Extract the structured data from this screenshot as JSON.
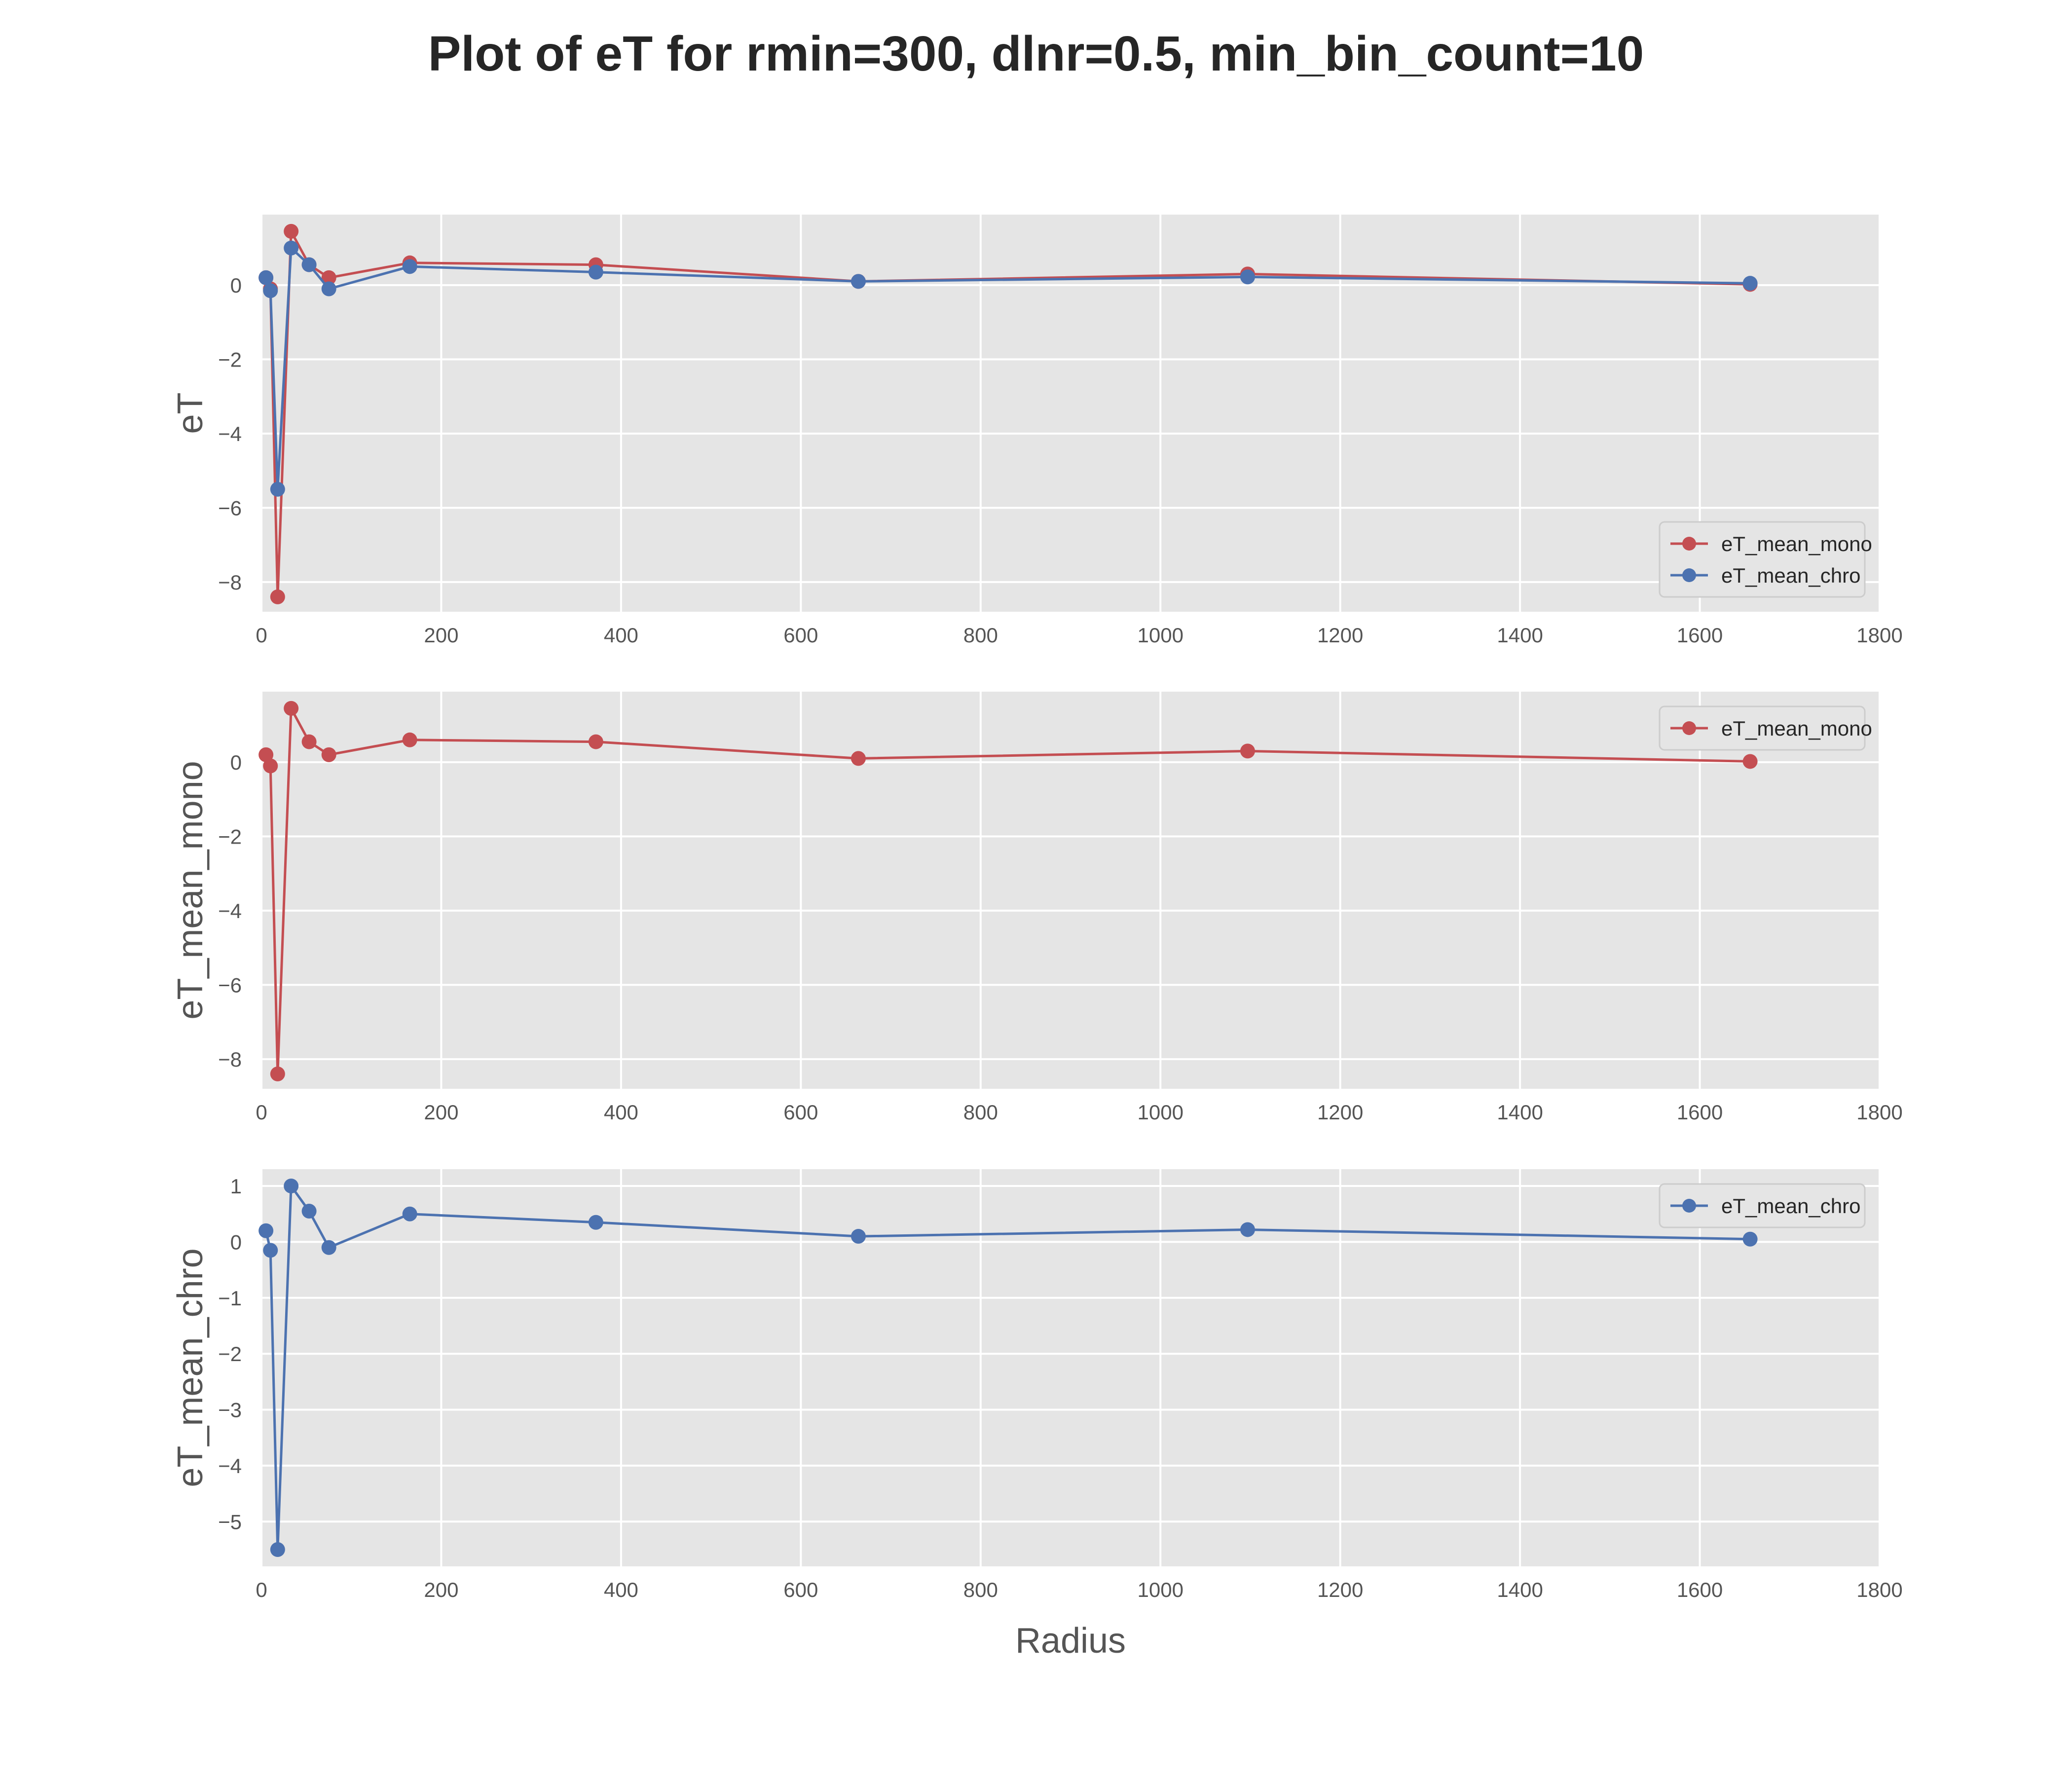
{
  "title": "Plot of eT for rmin=300, dlnr=0.5, min_bin_count=10",
  "colors": {
    "mono": "#c44e52",
    "chro": "#4c72b0",
    "panel_bg": "#e5e5e5",
    "grid": "#ffffff"
  },
  "chart_data": [
    {
      "type": "line",
      "ylabel": "eT",
      "xlabel": "",
      "xlim": [
        0,
        1800
      ],
      "ylim": [
        -8.8,
        1.9
      ],
      "xticks": [
        0,
        200,
        400,
        600,
        800,
        1000,
        1200,
        1400,
        1600,
        1800
      ],
      "yticks": [
        0,
        -2,
        -4,
        -6,
        -8
      ],
      "ytick_labels": [
        "0",
        "−2",
        "−4",
        "−6",
        "−8"
      ],
      "grid": true,
      "legend_position": "lower-right",
      "series": [
        {
          "name": "eT_mean_mono",
          "color_key": "mono",
          "x": [
            5,
            10,
            18,
            33,
            53,
            75,
            165,
            372,
            664,
            1097,
            1656
          ],
          "y": [
            0.2,
            -0.1,
            -8.4,
            1.45,
            0.55,
            0.2,
            0.6,
            0.55,
            0.1,
            0.3,
            0.02
          ]
        },
        {
          "name": "eT_mean_chro",
          "color_key": "chro",
          "x": [
            5,
            10,
            18,
            33,
            53,
            75,
            165,
            372,
            664,
            1097,
            1656
          ],
          "y": [
            0.2,
            -0.15,
            -5.5,
            1.0,
            0.55,
            -0.1,
            0.5,
            0.35,
            0.1,
            0.22,
            0.05
          ]
        }
      ]
    },
    {
      "type": "line",
      "ylabel": "eT_mean_mono",
      "xlabel": "",
      "xlim": [
        0,
        1800
      ],
      "ylim": [
        -8.8,
        1.9
      ],
      "xticks": [
        0,
        200,
        400,
        600,
        800,
        1000,
        1200,
        1400,
        1600,
        1800
      ],
      "yticks": [
        0,
        -2,
        -4,
        -6,
        -8
      ],
      "ytick_labels": [
        "0",
        "−2",
        "−4",
        "−6",
        "−8"
      ],
      "grid": true,
      "legend_position": "upper-right",
      "series": [
        {
          "name": "eT_mean_mono",
          "color_key": "mono",
          "x": [
            5,
            10,
            18,
            33,
            53,
            75,
            165,
            372,
            664,
            1097,
            1656
          ],
          "y": [
            0.2,
            -0.1,
            -8.4,
            1.45,
            0.55,
            0.2,
            0.6,
            0.55,
            0.1,
            0.3,
            0.02
          ]
        }
      ]
    },
    {
      "type": "line",
      "ylabel": "eT_mean_chro",
      "xlabel": "Radius",
      "xlim": [
        0,
        1800
      ],
      "ylim": [
        -5.8,
        1.3
      ],
      "xticks": [
        0,
        200,
        400,
        600,
        800,
        1000,
        1200,
        1400,
        1600,
        1800
      ],
      "yticks": [
        1,
        0,
        -1,
        -2,
        -3,
        -4,
        -5
      ],
      "ytick_labels": [
        "1",
        "0",
        "−1",
        "−2",
        "−3",
        "−4",
        "−5"
      ],
      "grid": true,
      "legend_position": "upper-right",
      "series": [
        {
          "name": "eT_mean_chro",
          "color_key": "chro",
          "x": [
            5,
            10,
            18,
            33,
            53,
            75,
            165,
            372,
            664,
            1097,
            1656
          ],
          "y": [
            0.2,
            -0.15,
            -5.5,
            1.0,
            0.55,
            -0.1,
            0.5,
            0.35,
            0.1,
            0.22,
            0.05
          ]
        }
      ]
    }
  ]
}
